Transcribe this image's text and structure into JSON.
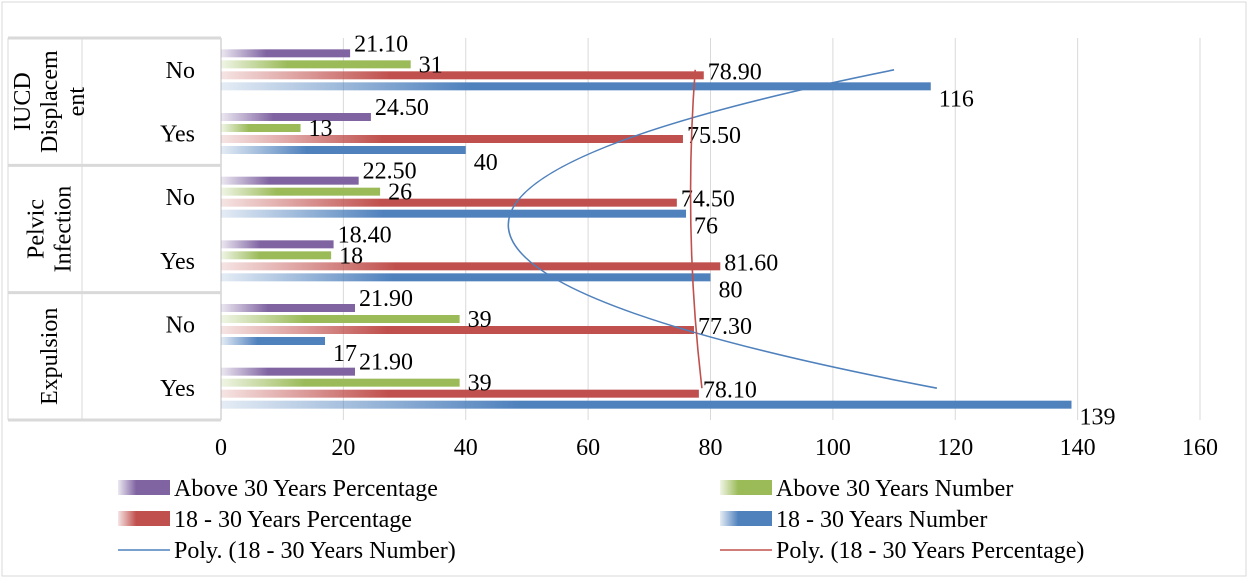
{
  "chart_data": {
    "type": "bar",
    "orientation": "horizontal",
    "title": "",
    "xlabel": "",
    "ylabel": "",
    "xlim": [
      0,
      160
    ],
    "x_ticks": [
      0,
      20,
      40,
      60,
      80,
      100,
      120,
      140,
      160
    ],
    "grid": true,
    "legend_position": "bottom",
    "groups": [
      {
        "label": "IUCD Displacement",
        "label_lines": [
          "IUCD",
          "Displacem",
          "ent"
        ],
        "sub_labels": [
          "No",
          "Yes"
        ]
      },
      {
        "label": "Pelvic Infection",
        "label_lines": [
          "Pelvic",
          "Infection"
        ],
        "sub_labels": [
          "No",
          "Yes"
        ]
      },
      {
        "label": "Expulsion",
        "label_lines": [
          "Expulsion"
        ],
        "sub_labels": [
          "No",
          "Yes"
        ]
      }
    ],
    "categories": [
      "IUCD Displacement No",
      "IUCD Displacement Yes",
      "Pelvic Infection No",
      "Pelvic Infection Yes",
      "Expulsion No",
      "Expulsion Yes"
    ],
    "series": [
      {
        "name": "Above 30 Years Percentage",
        "color": "#8064a2",
        "values": [
          21.1,
          24.5,
          22.5,
          18.4,
          21.9,
          21.9
        ],
        "labels": [
          "21.10",
          "24.50",
          "22.50",
          "18.40",
          "21.90",
          "21.90"
        ]
      },
      {
        "name": "Above 30 Years Number",
        "color": "#9bbb59",
        "values": [
          31,
          13,
          26,
          18,
          39,
          39
        ],
        "labels": [
          "31",
          "13",
          "26",
          "18",
          "39",
          "39"
        ]
      },
      {
        "name": "18 - 30 Years Percentage",
        "color": "#c0504d",
        "values": [
          78.9,
          75.5,
          74.5,
          81.6,
          77.3,
          78.1
        ],
        "labels": [
          "78.90",
          "75.50",
          "74.50",
          "81.60",
          "77.30",
          "78.10"
        ]
      },
      {
        "name": "18 - 30 Years Number",
        "color": "#4f81bd",
        "values": [
          116,
          40,
          76,
          80,
          17,
          139
        ],
        "labels": [
          "116",
          "40",
          "76",
          "80",
          "17",
          "139"
        ]
      }
    ],
    "trendlines": [
      {
        "name": "Poly. (18 - 30 Years Number)",
        "color": "#4f81bd",
        "series": "18 - 30 Years Number",
        "x": [
          110,
          47,
          117
        ]
      },
      {
        "name": "Poly. (18 - 30 Years Percentage)",
        "color": "#c0504d",
        "series": "18 - 30 Years Percentage",
        "x": [
          77.5,
          76.8,
          78.6
        ]
      }
    ],
    "legend": [
      {
        "name": "Above 30 Years Percentage",
        "kind": "bar",
        "color": "#8064a2"
      },
      {
        "name": "Above 30 Years Number",
        "kind": "bar",
        "color": "#9bbb59"
      },
      {
        "name": "18 - 30 Years Percentage",
        "kind": "bar",
        "color": "#c0504d"
      },
      {
        "name": "18 - 30 Years Number",
        "kind": "bar",
        "color": "#4f81bd"
      },
      {
        "name": "Poly. (18 - 30 Years Number)",
        "kind": "line",
        "color": "#4f81bd"
      },
      {
        "name": "Poly. (18 - 30 Years Percentage)",
        "kind": "line",
        "color": "#c0504d"
      }
    ]
  }
}
